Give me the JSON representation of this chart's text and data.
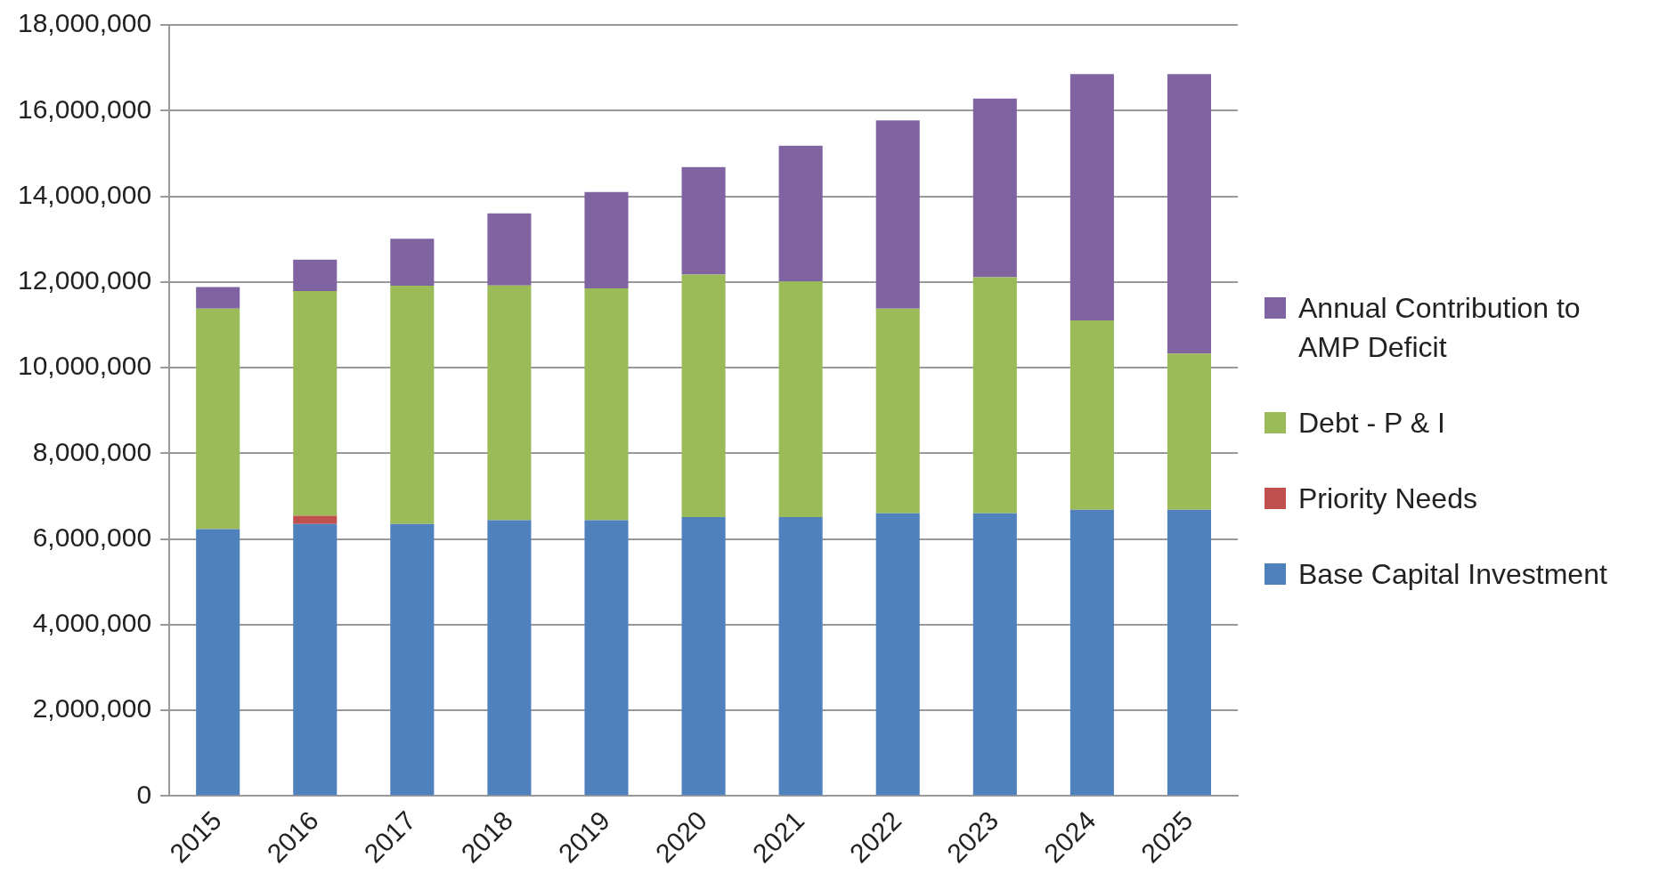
{
  "chart_data": {
    "type": "bar",
    "stacked": true,
    "categories": [
      "2015",
      "2016",
      "2017",
      "2018",
      "2019",
      "2020",
      "2021",
      "2022",
      "2023",
      "2024",
      "2025"
    ],
    "series": [
      {
        "name": "Base Capital Investment",
        "color": "#4f81bd",
        "values": [
          6230000,
          6350000,
          6350000,
          6440000,
          6440000,
          6510000,
          6510000,
          6600000,
          6600000,
          6680000,
          6680000
        ]
      },
      {
        "name": "Priority Needs",
        "color": "#c0504d",
        "values": [
          0,
          190000,
          0,
          0,
          0,
          0,
          0,
          0,
          0,
          0,
          0
        ]
      },
      {
        "name": "Debt - P & I",
        "color": "#9bbb59",
        "values": [
          5150000,
          5250000,
          5560000,
          5480000,
          5410000,
          5660000,
          5500000,
          4780000,
          5510000,
          4420000,
          3650000
        ]
      },
      {
        "name": "Annual Contribution to AMP Deficit",
        "color": "#8064a2",
        "values": [
          500000,
          730000,
          1100000,
          1680000,
          2250000,
          2510000,
          3170000,
          4390000,
          4170000,
          5750000,
          6520000
        ]
      }
    ],
    "ylim": [
      0,
      18000000
    ],
    "yticks": [
      0,
      {
        "value": 2000000,
        "label": "2,000,000"
      },
      {
        "value": 4000000,
        "label": "4,000,000"
      },
      {
        "value": 6000000,
        "label": "6,000,000"
      },
      {
        "value": 8000000,
        "label": "8,000,000"
      },
      {
        "value": 10000000,
        "label": "10,000,000"
      },
      {
        "value": 12000000,
        "label": "12,000,000"
      },
      {
        "value": 14000000,
        "label": "14,000,000"
      },
      {
        "value": 16000000,
        "label": "16,000,000"
      },
      {
        "value": 18000000,
        "label": "18,000,000"
      }
    ],
    "grid": "y",
    "legend": "right"
  }
}
